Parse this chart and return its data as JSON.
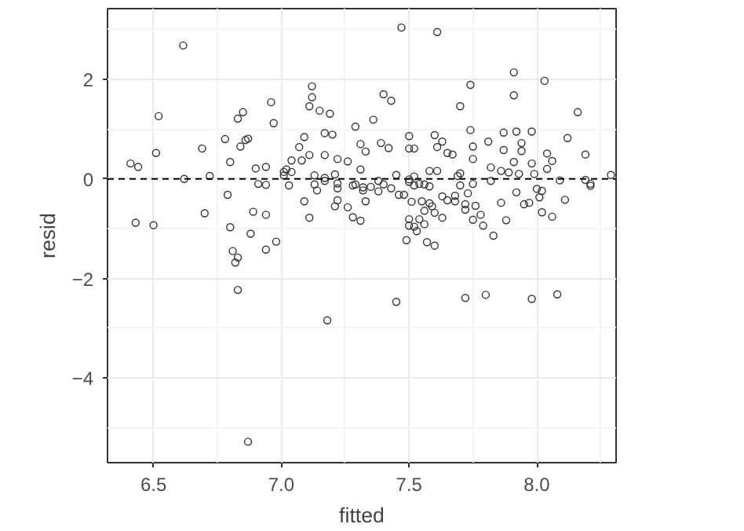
{
  "chart_data": {
    "type": "scatter",
    "xlabel": "fitted",
    "ylabel": "resid",
    "xlim": [
      6.32,
      8.31
    ],
    "ylim": [
      -5.7,
      3.42
    ],
    "xticks": [
      6.5,
      {
        "value": 7.0,
        "label": "7.0"
      },
      7.5,
      {
        "value": 8.0,
        "label": "8.0"
      }
    ],
    "yticks": [
      -4,
      -2,
      0,
      2
    ],
    "grid": true,
    "marker": "circle",
    "ref_lines": [
      {
        "axis": "y",
        "value": 0,
        "label": null,
        "color": "#000000",
        "line_style": "dashed"
      }
    ],
    "series": [
      {
        "color": "#333333",
        "x": [
          6.616,
          6.52,
          6.51,
          6.41,
          6.44,
          6.69,
          6.72,
          6.62,
          6.78,
          6.8,
          6.83,
          6.85,
          6.84,
          6.86,
          6.87,
          6.9,
          6.94,
          6.96,
          6.97,
          6.91,
          6.94,
          7.01,
          7.02,
          7.04,
          7.04,
          7.03,
          7.07,
          7.09,
          7.08,
          7.11,
          7.12,
          7.12,
          7.11,
          7.15,
          7.19,
          7.17,
          7.2,
          7.17,
          7.22,
          7.26,
          7.29,
          7.31,
          7.31,
          7.13,
          7.13,
          7.17,
          7.21,
          7.22,
          7.29,
          7.01,
          7.47,
          7.61,
          7.91,
          8.03,
          7.74,
          7.91,
          7.4,
          7.43,
          7.7,
          8.16,
          7.36,
          7.74,
          7.87,
          7.92,
          7.98,
          8.12,
          7.5,
          7.6,
          7.63,
          7.81,
          7.39,
          7.42,
          7.33,
          7.5,
          7.52,
          7.61,
          7.65,
          7.67,
          7.75,
          7.75,
          7.87,
          7.94,
          7.94,
          8.04,
          8.06,
          8.19,
          7.98,
          7.91,
          7.82,
          7.86,
          7.89,
          7.93,
          7.99,
          8.04,
          7.58,
          7.61,
          7.45,
          7.52,
          7.7,
          7.69,
          8.29,
          8.09,
          8.19,
          7.5,
          7.7,
          7.75,
          7.82,
          8.21,
          7.38,
          7.32,
          7.35,
          7.38,
          7.4,
          7.33,
          7.43,
          7.46,
          7.48,
          7.5,
          7.52,
          7.54,
          7.56,
          7.58,
          7.51,
          7.55,
          7.58,
          7.59,
          7.56,
          7.6,
          7.63,
          7.63,
          7.65,
          7.68,
          7.68,
          7.72,
          7.72,
          7.73,
          7.76,
          7.75,
          7.78,
          7.79,
          7.83,
          7.86,
          7.88,
          7.92,
          7.95,
          7.97,
          8.0,
          8.02,
          8.01,
          8.02,
          8.06,
          8.11,
          8.21,
          7.5,
          7.54,
          7.5,
          7.52,
          7.53,
          7.56,
          7.49,
          7.57,
          7.6,
          7.31,
          7.45,
          7.72,
          7.8,
          7.98,
          8.08,
          6.43,
          6.5,
          6.7,
          6.79,
          6.8,
          6.89,
          6.94,
          6.88,
          6.98,
          6.94,
          6.81,
          6.83,
          6.82,
          6.83,
          7.18,
          7.09,
          7.11,
          7.14,
          7.17,
          7.22,
          7.22,
          7.21,
          7.26,
          7.28,
          7.28,
          7.32,
          6.87
        ],
        "values": [
          2.68,
          1.26,
          0.52,
          0.31,
          0.24,
          0.61,
          0.06,
          0.0,
          0.8,
          0.34,
          1.21,
          1.34,
          0.65,
          0.78,
          0.81,
          0.21,
          0.24,
          1.54,
          1.12,
          -0.1,
          -0.12,
          0.14,
          0.19,
          0.37,
          0.14,
          -0.13,
          0.64,
          0.84,
          0.37,
          0.48,
          1.86,
          1.64,
          1.46,
          1.37,
          1.31,
          0.92,
          0.89,
          0.48,
          0.4,
          0.35,
          1.05,
          0.7,
          0.19,
          0.07,
          -0.11,
          0.02,
          0.09,
          -0.09,
          -0.11,
          0.07,
          3.04,
          2.95,
          2.14,
          1.97,
          1.89,
          1.68,
          1.7,
          1.57,
          1.46,
          1.34,
          1.19,
          0.98,
          0.93,
          0.95,
          0.95,
          0.82,
          0.86,
          0.88,
          0.75,
          0.75,
          0.72,
          0.62,
          0.55,
          0.61,
          0.61,
          0.64,
          0.52,
          0.49,
          0.65,
          0.4,
          0.58,
          0.72,
          0.56,
          0.51,
          0.36,
          0.49,
          0.31,
          0.34,
          0.23,
          0.16,
          0.13,
          0.1,
          0.1,
          0.2,
          0.16,
          0.16,
          0.08,
          0.05,
          0.11,
          0.06,
          0.08,
          -0.03,
          -0.02,
          -0.01,
          -0.13,
          -0.1,
          -0.04,
          -0.1,
          -0.04,
          -0.17,
          -0.16,
          -0.25,
          -0.11,
          -0.45,
          -0.19,
          -0.32,
          -0.32,
          -0.06,
          -0.13,
          -0.1,
          -0.11,
          -0.15,
          -0.46,
          -0.45,
          -0.49,
          -0.55,
          -0.64,
          -0.68,
          -0.78,
          -0.35,
          -0.43,
          -0.34,
          -0.45,
          -0.51,
          -0.62,
          -0.29,
          -0.54,
          -0.82,
          -0.72,
          -0.94,
          -1.14,
          -0.48,
          -0.83,
          -0.27,
          -0.51,
          -0.48,
          -0.2,
          -0.24,
          -0.37,
          -0.67,
          -0.76,
          -0.42,
          -0.14,
          -0.81,
          -0.81,
          -0.94,
          -0.96,
          -1.05,
          -0.91,
          -1.23,
          -1.27,
          -1.34,
          -0.84,
          -2.47,
          -2.39,
          -2.33,
          -2.41,
          -2.32,
          -0.88,
          -0.93,
          -0.69,
          -0.32,
          -0.97,
          -0.66,
          -0.72,
          -1.1,
          -1.26,
          -1.42,
          -1.45,
          -1.58,
          -1.68,
          -2.23,
          -2.84,
          -0.45,
          -0.78,
          -0.23,
          -0.04,
          -0.19,
          -0.43,
          -0.55,
          -0.57,
          -0.77,
          -0.13,
          -0.23,
          -5.28
        ]
      }
    ]
  }
}
